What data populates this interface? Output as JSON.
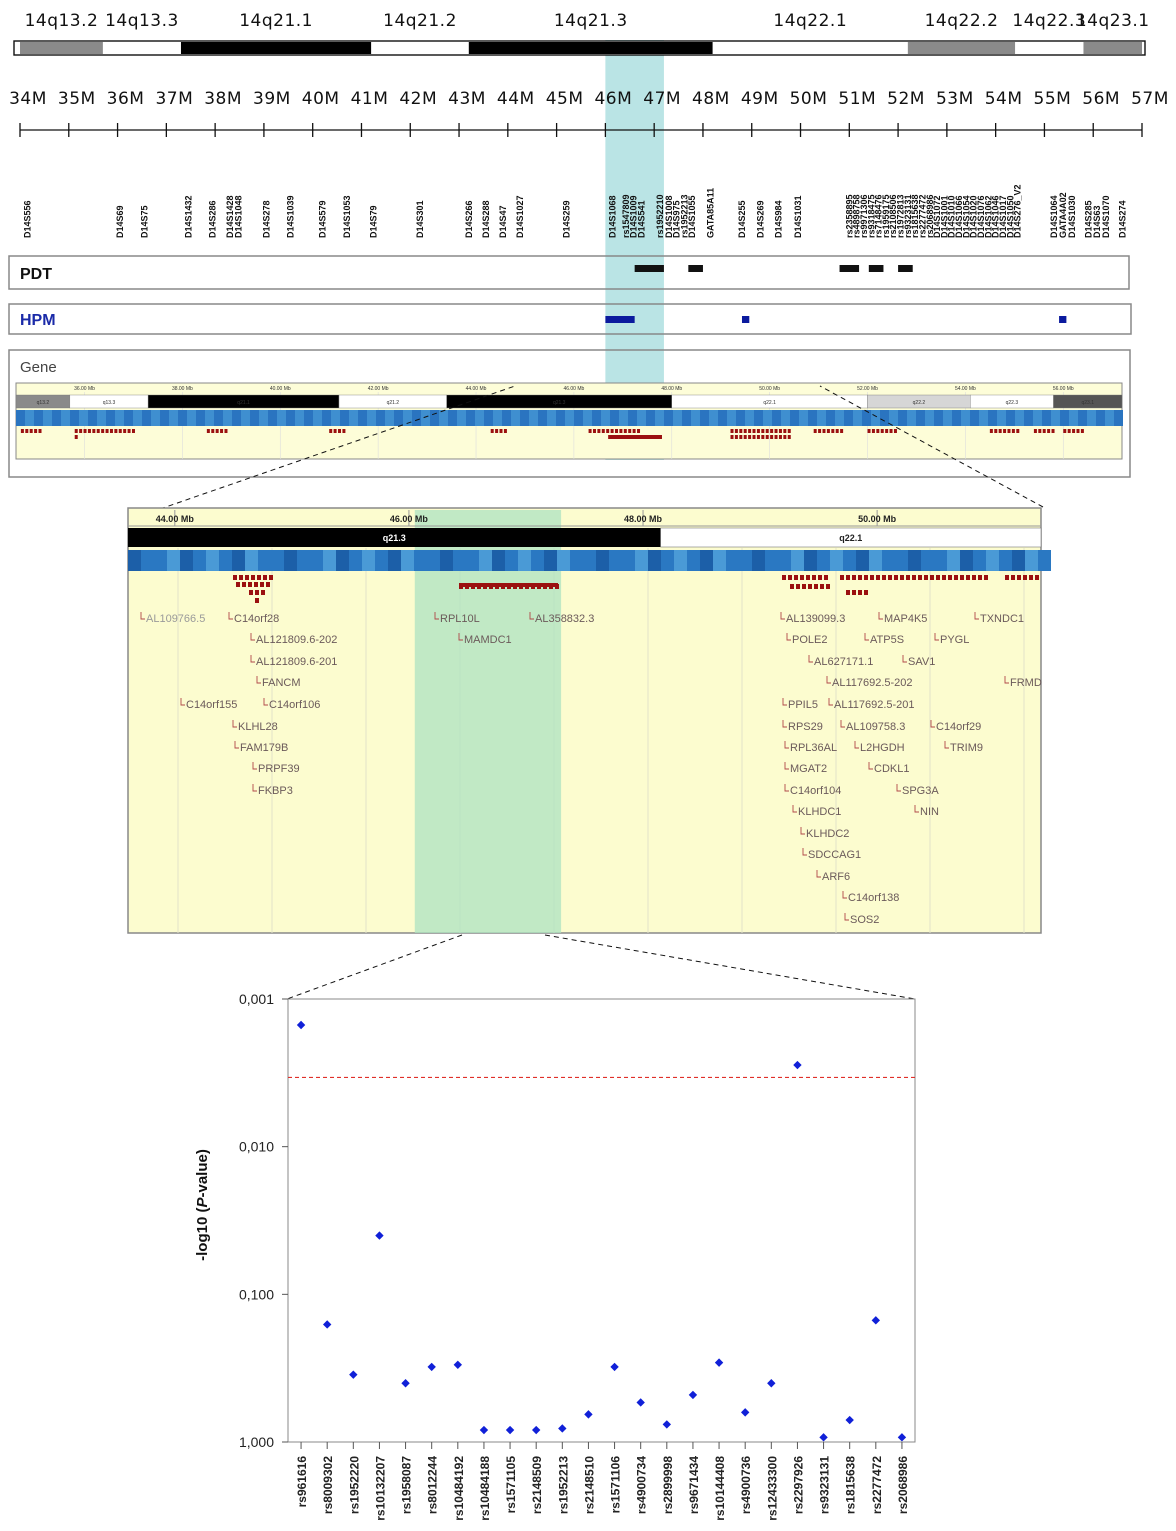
{
  "ideogram": {
    "bands": [
      {
        "label": "14q13.2",
        "start": 34.0,
        "end": 35.7,
        "stain": "gpos50"
      },
      {
        "label": "14q13.3",
        "start": 35.7,
        "end": 37.3,
        "stain": "gneg"
      },
      {
        "label": "14q21.1",
        "start": 37.3,
        "end": 41.2,
        "stain": "gpos100"
      },
      {
        "label": "14q21.2",
        "start": 41.2,
        "end": 43.2,
        "stain": "gneg"
      },
      {
        "label": "14q21.3",
        "start": 43.2,
        "end": 48.2,
        "stain": "gpos100"
      },
      {
        "label": "14q22.1",
        "start": 48.2,
        "end": 52.2,
        "stain": "gneg"
      },
      {
        "label": "14q22.2",
        "start": 52.2,
        "end": 54.4,
        "stain": "gpos50"
      },
      {
        "label": "14q22.3",
        "start": 54.4,
        "end": 55.8,
        "stain": "gneg"
      },
      {
        "label": "14q23.1",
        "start": 55.8,
        "end": 57.0,
        "stain": "gpos50"
      }
    ],
    "mb_ticks": [
      "34M",
      "35M",
      "36M",
      "37M",
      "38M",
      "39M",
      "40M",
      "41M",
      "42M",
      "43M",
      "44M",
      "45M",
      "46M",
      "47M",
      "48M",
      "49M",
      "50M",
      "51M",
      "52M",
      "53M",
      "54M",
      "55M",
      "56M",
      "57M"
    ],
    "highlight": {
      "start": 46.0,
      "end": 47.2,
      "color": "#aedfe0"
    }
  },
  "markers": [
    {
      "name": "D14S556",
      "pos": 34.15
    },
    {
      "name": "D14S69",
      "pos": 36.05
    },
    {
      "name": "D14S75",
      "pos": 36.55
    },
    {
      "name": "D14S1432",
      "pos": 37.45
    },
    {
      "name": "D14S286",
      "pos": 37.95
    },
    {
      "name": "D14S1428",
      "pos": 38.3
    },
    {
      "name": "D14S1048",
      "pos": 38.48
    },
    {
      "name": "D14S278",
      "pos": 39.05
    },
    {
      "name": "D14S1039",
      "pos": 39.55
    },
    {
      "name": "D14S579",
      "pos": 40.2
    },
    {
      "name": "D14S1053",
      "pos": 40.7
    },
    {
      "name": "D14S79",
      "pos": 41.25
    },
    {
      "name": "D14S301",
      "pos": 42.2
    },
    {
      "name": "D14S266",
      "pos": 43.2
    },
    {
      "name": "D14S288",
      "pos": 43.55
    },
    {
      "name": "D14S47",
      "pos": 43.9
    },
    {
      "name": "D14S1027",
      "pos": 44.25
    },
    {
      "name": "D14S259",
      "pos": 45.2
    },
    {
      "name": "D14S1068",
      "pos": 46.15
    },
    {
      "name": "rs1547809",
      "pos": 46.42
    },
    {
      "name": "D14S1009",
      "pos": 46.58
    },
    {
      "name": "D14S541",
      "pos": 46.74
    },
    {
      "name": "rs1952210",
      "pos": 47.12
    },
    {
      "name": "D14S1008",
      "pos": 47.3
    },
    {
      "name": "D14S975",
      "pos": 47.46
    },
    {
      "name": "rs1952213",
      "pos": 47.62
    },
    {
      "name": "D14S1055",
      "pos": 47.78
    },
    {
      "name": "GATA85A11",
      "pos": 48.15
    },
    {
      "name": "D14S255",
      "pos": 48.8
    },
    {
      "name": "D14S269",
      "pos": 49.18
    },
    {
      "name": "D14S984",
      "pos": 49.55
    },
    {
      "name": "D14S1031",
      "pos": 49.95
    },
    {
      "name": "rs2358895",
      "pos": 51.0
    },
    {
      "name": "rs4898758",
      "pos": 51.15
    },
    {
      "name": "rs9971306",
      "pos": 51.3
    },
    {
      "name": "rs9318475",
      "pos": 51.45
    },
    {
      "name": "rs7148476",
      "pos": 51.6
    },
    {
      "name": "rs1959175",
      "pos": 51.75
    },
    {
      "name": "rs2108506",
      "pos": 51.9
    },
    {
      "name": "rs1972813",
      "pos": 52.05
    },
    {
      "name": "rs9323131",
      "pos": 52.2
    },
    {
      "name": "rs1815638",
      "pos": 52.35
    },
    {
      "name": "rs2277472",
      "pos": 52.5
    },
    {
      "name": "rs2068986",
      "pos": 52.65
    },
    {
      "name": "D14S1072",
      "pos": 52.8
    },
    {
      "name": "D14S1001",
      "pos": 52.95
    },
    {
      "name": "D14S1010",
      "pos": 53.1
    },
    {
      "name": "D14S1066",
      "pos": 53.25
    },
    {
      "name": "D14S1054",
      "pos": 53.4
    },
    {
      "name": "D14S1020",
      "pos": 53.55
    },
    {
      "name": "D14S1076",
      "pos": 53.7
    },
    {
      "name": "D14S1062",
      "pos": 53.85
    },
    {
      "name": "D14S1046",
      "pos": 54.0
    },
    {
      "name": "D14S1017",
      "pos": 54.15
    },
    {
      "name": "D14S1050",
      "pos": 54.3
    },
    {
      "name": "D14S276_V2",
      "pos": 54.45
    },
    {
      "name": "D14S1064",
      "pos": 55.2
    },
    {
      "name": "GATA4A02",
      "pos": 55.38
    },
    {
      "name": "D14S1030",
      "pos": 55.56
    },
    {
      "name": "D14S285",
      "pos": 55.9
    },
    {
      "name": "D14S63",
      "pos": 56.08
    },
    {
      "name": "D14S1070",
      "pos": 56.26
    },
    {
      "name": "D14S274",
      "pos": 56.6
    }
  ],
  "tracks": {
    "pdt": {
      "label": "PDT",
      "color": "#111111",
      "segments": [
        {
          "start": 46.6,
          "end": 47.2
        },
        {
          "start": 47.7,
          "end": 48.0
        },
        {
          "start": 50.8,
          "end": 51.2
        },
        {
          "start": 51.4,
          "end": 51.7
        },
        {
          "start": 52.0,
          "end": 52.3
        }
      ]
    },
    "hpm": {
      "label": "HPM",
      "color": "#0b1a9e",
      "segments": [
        {
          "start": 46.0,
          "end": 46.6
        },
        {
          "start": 48.8,
          "end": 48.95
        },
        {
          "start": 55.3,
          "end": 55.45
        }
      ]
    },
    "gene": {
      "label": "Gene"
    }
  },
  "mini_browser": {
    "mb_labels": [
      "36.00 Mb",
      "38.00 Mb",
      "40.00 Mb",
      "42.00 Mb",
      "44.00 Mb",
      "46.00 Mb",
      "48.00 Mb",
      "50.00 Mb",
      "52.00 Mb",
      "54.00 Mb",
      "56.00 Mb"
    ],
    "band_labels": [
      "q13.2",
      "q13.3",
      "q21.1",
      "q21.2",
      "q21.3",
      "q22.1",
      "q22.2",
      "q22.3",
      "q23.1"
    ]
  },
  "zoom_browser": {
    "mb_labels": [
      "44.00 Mb",
      "46.00 Mb",
      "48.00 Mb",
      "50.00 Mb"
    ],
    "bands": [
      {
        "label": "q21.3",
        "stain": "black"
      },
      {
        "label": "q22.1",
        "stain": "white"
      }
    ],
    "genes": [
      {
        "name": "AL109766.5",
        "grey": true
      },
      {
        "name": "C14orf28"
      },
      {
        "name": "AL121809.6-202"
      },
      {
        "name": "AL121809.6-201"
      },
      {
        "name": "FANCM"
      },
      {
        "name": "C14orf155"
      },
      {
        "name": "C14orf106"
      },
      {
        "name": "KLHL28"
      },
      {
        "name": "FAM179B"
      },
      {
        "name": "PRPF39"
      },
      {
        "name": "FKBP3"
      },
      {
        "name": "RPL10L"
      },
      {
        "name": "AL358832.3"
      },
      {
        "name": "MAMDC1"
      },
      {
        "name": "AL139099.3"
      },
      {
        "name": "MAP4K5"
      },
      {
        "name": "TXNDC1"
      },
      {
        "name": "POLE2"
      },
      {
        "name": "ATP5S"
      },
      {
        "name": "PYGL"
      },
      {
        "name": "AL627171.1"
      },
      {
        "name": "SAV1"
      },
      {
        "name": "AL117692.5-202"
      },
      {
        "name": "FRMD"
      },
      {
        "name": "PPIL5"
      },
      {
        "name": "AL117692.5-201"
      },
      {
        "name": "RPS29"
      },
      {
        "name": "AL109758.3"
      },
      {
        "name": "C14orf29"
      },
      {
        "name": "RPL36AL"
      },
      {
        "name": "L2HGDH"
      },
      {
        "name": "TRIM9"
      },
      {
        "name": "MGAT2"
      },
      {
        "name": "CDKL1"
      },
      {
        "name": "C14orf104"
      },
      {
        "name": "SPG3A"
      },
      {
        "name": "KLHDC1"
      },
      {
        "name": "NIN"
      },
      {
        "name": "KLHDC2"
      },
      {
        "name": "SDCCAG1"
      },
      {
        "name": "ARF6"
      },
      {
        "name": "C14orf138"
      },
      {
        "name": "SOS2"
      }
    ]
  },
  "chart_data": {
    "type": "scatter",
    "title": "",
    "ylabel_pre": "-log10 (",
    "ylabel_italic": "P",
    "ylabel_post": "-value)",
    "yscale": "log",
    "yinverted": true,
    "ylim": [
      0.001,
      1.0
    ],
    "yticks": [
      "0,001",
      "0,010",
      "0,100",
      "1,000"
    ],
    "threshold": {
      "value": 0.0034,
      "color": "#e0302a",
      "style": "dashed"
    },
    "marker_color": "#1020d8",
    "x": [
      "rs961616",
      "rs8009302",
      "rs1952220",
      "rs10132207",
      "rs1958087",
      "rs8012244",
      "rs10484192",
      "rs10484188",
      "rs1571105",
      "rs2148509",
      "rs1952213",
      "rs2148510",
      "rs1571106",
      "rs4900734",
      "rs2899998",
      "rs9671434",
      "rs10144408",
      "rs4900736",
      "rs12433300",
      "rs2297926",
      "rs9323131",
      "rs1815638",
      "rs2277472",
      "rs2068986"
    ],
    "y": [
      0.0015,
      0.16,
      0.35,
      0.04,
      0.4,
      0.31,
      0.3,
      0.83,
      0.83,
      0.83,
      0.81,
      0.65,
      0.31,
      0.54,
      0.76,
      0.48,
      0.29,
      0.63,
      0.4,
      0.0028,
      0.93,
      0.71,
      0.15,
      0.93
    ]
  }
}
